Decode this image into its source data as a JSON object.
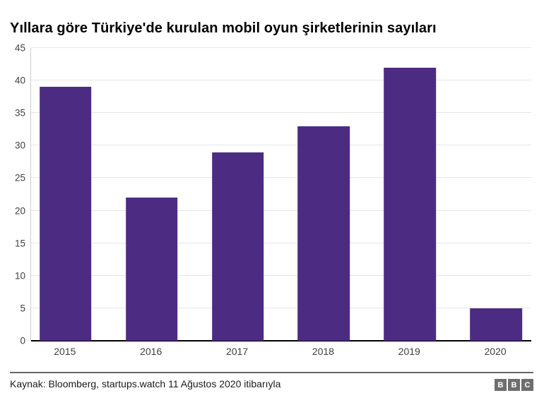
{
  "title": "Yıllara göre Türkiye'de kurulan mobil oyun şirketlerinin sayıları",
  "chart_data": {
    "type": "bar",
    "categories": [
      "2015",
      "2016",
      "2017",
      "2018",
      "2019",
      "2020"
    ],
    "values": [
      39,
      22,
      29,
      33,
      42,
      5
    ],
    "title": "Yıllara göre Türkiye'de kurulan mobil oyun şirketlerinin sayıları",
    "xlabel": "",
    "ylabel": "",
    "ylim": [
      0,
      45
    ],
    "ytick_interval": 5,
    "yticks": [
      0,
      5,
      10,
      15,
      20,
      25,
      30,
      35,
      40,
      45
    ],
    "grid": true,
    "legend": false,
    "bar_color": "#4C2C82",
    "gridline_color": "#e6e6e6",
    "axis_color": "#000000"
  },
  "footer": {
    "source": "Kaynak: Bloomberg, startups.watch 11 Ağustos 2020 itibarıyla",
    "logo_letters": [
      "B",
      "B",
      "C"
    ]
  }
}
